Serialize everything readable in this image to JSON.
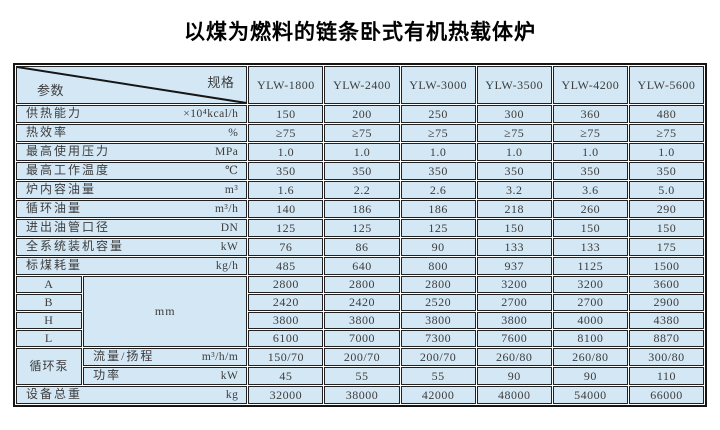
{
  "title": "以煤为燃料的链条卧式有机热载体炉",
  "colors": {
    "header_bg": "#f6c7b9",
    "body_bg": "#d3e7f4",
    "border": "#222222",
    "text": "#3d3d3d"
  },
  "table": {
    "corner": {
      "spec_label": "规格",
      "param_label": "参数"
    },
    "models": [
      "YLW-1800",
      "YLW-2400",
      "YLW-3000",
      "YLW-3500",
      "YLW-4200",
      "YLW-5600"
    ],
    "spec_rows": [
      {
        "label": "供热能力",
        "unit": "×10⁴kcal/h",
        "values": [
          "150",
          "200",
          "250",
          "300",
          "360",
          "480"
        ]
      },
      {
        "label": "热效率",
        "unit": "%",
        "values": [
          "≥75",
          "≥75",
          "≥75",
          "≥75",
          "≥75",
          "≥75"
        ]
      },
      {
        "label": "最高使用压力",
        "unit": "MPa",
        "values": [
          "1.0",
          "1.0",
          "1.0",
          "1.0",
          "1.0",
          "1.0"
        ]
      },
      {
        "label": "最高工作温度",
        "unit": "℃",
        "values": [
          "350",
          "350",
          "350",
          "350",
          "350",
          "350"
        ]
      },
      {
        "label": "炉内容油量",
        "unit": "m³",
        "values": [
          "1.6",
          "2.2",
          "2.6",
          "3.2",
          "3.6",
          "5.0"
        ]
      },
      {
        "label": "循环油量",
        "unit": "m³/h",
        "values": [
          "140",
          "186",
          "186",
          "218",
          "260",
          "290"
        ]
      },
      {
        "label": "进出油管口径",
        "unit": "DN",
        "values": [
          "125",
          "125",
          "125",
          "150",
          "150",
          "150"
        ]
      },
      {
        "label": "全系统装机容量",
        "unit": "kW",
        "values": [
          "76",
          "86",
          "90",
          "133",
          "133",
          "175"
        ]
      },
      {
        "label": "标煤耗量",
        "unit": "kg/h",
        "values": [
          "485",
          "640",
          "800",
          "937",
          "1125",
          "1500"
        ]
      }
    ],
    "dim_unit": "mm",
    "dim_rows": [
      {
        "label": "A",
        "values": [
          "2800",
          "2800",
          "2800",
          "3200",
          "3200",
          "3600"
        ]
      },
      {
        "label": "B",
        "values": [
          "2420",
          "2420",
          "2520",
          "2700",
          "2700",
          "2900"
        ]
      },
      {
        "label": "H",
        "values": [
          "3800",
          "3800",
          "3800",
          "3800",
          "4000",
          "4380"
        ]
      },
      {
        "label": "L",
        "values": [
          "6100",
          "7000",
          "7300",
          "7600",
          "8100",
          "8870"
        ]
      }
    ],
    "pump": {
      "label": "循环泵",
      "rows": [
        {
          "label": "流量/扬程",
          "unit": "m³/h/m",
          "values": [
            "150/70",
            "200/70",
            "200/70",
            "260/80",
            "260/80",
            "300/80"
          ]
        },
        {
          "label": "功率",
          "unit": "kW",
          "values": [
            "45",
            "55",
            "55",
            "90",
            "90",
            "110"
          ]
        }
      ]
    },
    "total": {
      "label": "设备总重",
      "unit": "kg",
      "values": [
        "32000",
        "38000",
        "42000",
        "48000",
        "54000",
        "66000"
      ]
    }
  }
}
